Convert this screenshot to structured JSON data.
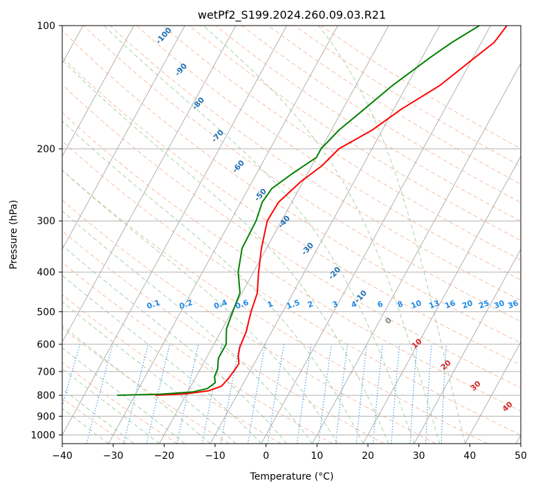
{
  "chart_data": {
    "type": "line",
    "chart_kind": "skew-T log-p",
    "title": "wetPf2_S199.2024.260.09.03.R21",
    "xlabel": "Temperature (°C)",
    "ylabel": "Pressure (hPa)",
    "xlim": [
      -40,
      50
    ],
    "ylim": [
      1050,
      100
    ],
    "y_scale": "log",
    "grid": true,
    "x_ticks": [
      "−40",
      "−30",
      "−20",
      "−10",
      "0",
      "10",
      "20",
      "30",
      "40",
      "50"
    ],
    "y_ticks": [
      "100",
      "200",
      "300",
      "400",
      "500",
      "600",
      "700",
      "800",
      "900",
      "1000"
    ],
    "series": [
      {
        "key": "temperature",
        "color": "#ff0000",
        "points": [
          {
            "p": 800,
            "t": -26
          },
          {
            "p": 793,
            "t": -20
          },
          {
            "p": 780,
            "t": -16
          },
          {
            "p": 760,
            "t": -14
          },
          {
            "p": 730,
            "t": -13.5
          },
          {
            "p": 700,
            "t": -13.2
          },
          {
            "p": 670,
            "t": -13.0
          },
          {
            "p": 640,
            "t": -14.0
          },
          {
            "p": 610,
            "t": -14.6
          },
          {
            "p": 560,
            "t": -15.0
          },
          {
            "p": 500,
            "t": -16.2
          },
          {
            "p": 450,
            "t": -17.0
          },
          {
            "p": 400,
            "t": -19.0
          },
          {
            "p": 350,
            "t": -21.0
          },
          {
            "p": 300,
            "t": -22.8
          },
          {
            "p": 270,
            "t": -22.6
          },
          {
            "p": 240,
            "t": -20.4
          },
          {
            "p": 220,
            "t": -18.0
          },
          {
            "p": 200,
            "t": -16.5
          },
          {
            "p": 180,
            "t": -12.0
          },
          {
            "p": 160,
            "t": -8.5
          },
          {
            "p": 140,
            "t": -3.5
          },
          {
            "p": 120,
            "t": 0.3
          },
          {
            "p": 110,
            "t": 2.5
          },
          {
            "p": 100,
            "t": 3.2
          }
        ]
      },
      {
        "key": "dewpoint",
        "color": "#008000",
        "points": [
          {
            "p": 800,
            "t": -33.5
          },
          {
            "p": 795,
            "t": -25
          },
          {
            "p": 785,
            "t": -19
          },
          {
            "p": 770,
            "t": -16.5
          },
          {
            "p": 745,
            "t": -15.6
          },
          {
            "p": 720,
            "t": -16.4
          },
          {
            "p": 690,
            "t": -16.6
          },
          {
            "p": 650,
            "t": -17.6
          },
          {
            "p": 600,
            "t": -17.6
          },
          {
            "p": 550,
            "t": -19.2
          },
          {
            "p": 500,
            "t": -19.8
          },
          {
            "p": 450,
            "t": -20.4
          },
          {
            "p": 400,
            "t": -23.0
          },
          {
            "p": 350,
            "t": -24.8
          },
          {
            "p": 300,
            "t": -25.0
          },
          {
            "p": 270,
            "t": -25.8
          },
          {
            "p": 250,
            "t": -25.4
          },
          {
            "p": 230,
            "t": -23.0
          },
          {
            "p": 210,
            "t": -20.0
          },
          {
            "p": 200,
            "t": -20.0
          },
          {
            "p": 180,
            "t": -18.5
          },
          {
            "p": 160,
            "t": -15.8
          },
          {
            "p": 140,
            "t": -12.8
          },
          {
            "p": 120,
            "t": -8.5
          },
          {
            "p": 110,
            "t": -5.8
          },
          {
            "p": 100,
            "t": -2.2
          }
        ]
      }
    ],
    "isotherm_step_c": 10,
    "dry_adiabat_labels": [
      "-100",
      "-90",
      "-80",
      "-70",
      "-60",
      "-50",
      "-40",
      "-30",
      "-20",
      "-10"
    ],
    "moist_adiabat_labels": [
      "0",
      "10",
      "20",
      "30",
      "40"
    ],
    "mixing_ratio_labels": [
      "0.1",
      "0.2",
      "0.4",
      "0.6",
      "1",
      "1.5",
      "2",
      "3",
      "4",
      "6",
      "8",
      "10",
      "13",
      "16",
      "20",
      "25",
      "30",
      "36"
    ],
    "mixing_ratio_values": [
      0.1,
      0.2,
      0.4,
      0.6,
      1,
      1.5,
      2,
      3,
      4,
      6,
      8,
      10,
      13,
      16,
      20,
      25,
      30,
      36
    ],
    "colors": {
      "temperature": "#ff0000",
      "dewpoint": "#008000",
      "isotherm": "#b0b0b0",
      "dry_adiabat": "#f4a582",
      "moist_adiabat": "#7fbf7f",
      "mixing_ratio": "#1e88e5",
      "dry_label": "#1f6fb4",
      "moist_label": "#d62728",
      "mixing_label": "#1e88e5",
      "zero_label": "#808080"
    }
  }
}
